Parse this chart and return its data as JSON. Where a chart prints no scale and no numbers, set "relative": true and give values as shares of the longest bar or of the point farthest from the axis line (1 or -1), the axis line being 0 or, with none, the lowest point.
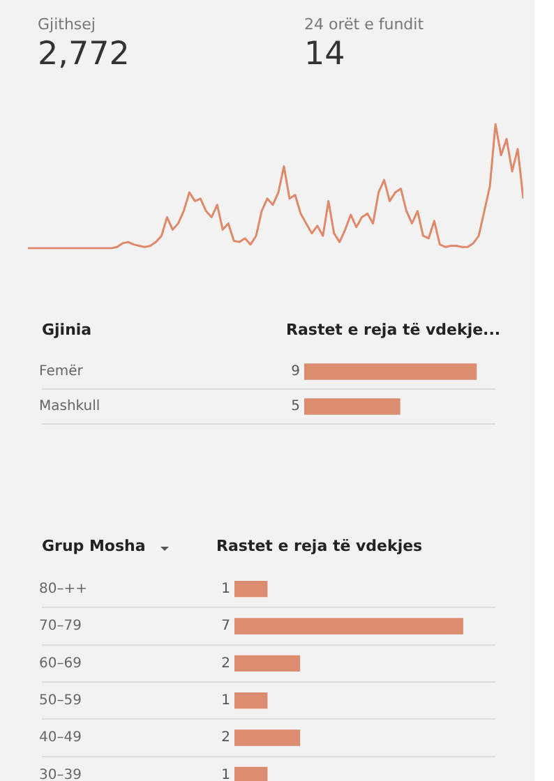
{
  "chart_data": [
    {
      "type": "other",
      "annotations": [
        "Gjithsej",
        "2,772",
        "24 orët e fundit",
        "14"
      ]
    },
    {
      "type": "line",
      "relative": true,
      "marker": "none",
      "legend": false,
      "color": "#e0896a",
      "categories": [
        null,
        null,
        null,
        null,
        null,
        null,
        null,
        null,
        null,
        null,
        null,
        null,
        null,
        null,
        null,
        null,
        null,
        null,
        null,
        null,
        null,
        null,
        null,
        null,
        null,
        null,
        null,
        null,
        null,
        null,
        null,
        null,
        null,
        null,
        null,
        null,
        null,
        null,
        null,
        null,
        null,
        null,
        null,
        null,
        null,
        null,
        null,
        null,
        null,
        null,
        null,
        null,
        null,
        null,
        null,
        null,
        null,
        null,
        null,
        null,
        null,
        null,
        null,
        null,
        null,
        null,
        null,
        null,
        null,
        null,
        null,
        null,
        null,
        null,
        null,
        null,
        null,
        null,
        null,
        null,
        null,
        null,
        null,
        null,
        null,
        null,
        null,
        null,
        null,
        null
      ],
      "values": [
        0,
        0,
        0,
        0,
        0,
        0,
        0,
        0,
        0,
        0,
        0,
        0,
        0,
        0,
        0,
        0,
        0.01,
        0.04,
        0.05,
        0.03,
        0.02,
        0.01,
        0.02,
        0.05,
        0.1,
        0.25,
        0.15,
        0.2,
        0.3,
        0.45,
        0.38,
        0.4,
        0.3,
        0.25,
        0.35,
        0.15,
        0.2,
        0.06,
        0.05,
        0.08,
        0.03,
        0.1,
        0.3,
        0.4,
        0.35,
        0.45,
        0.66,
        0.4,
        0.43,
        0.28,
        0.2,
        0.12,
        0.18,
        0.1,
        0.38,
        0.12,
        0.05,
        0.15,
        0.27,
        0.17,
        0.25,
        0.28,
        0.2,
        0.45,
        0.55,
        0.38,
        0.45,
        0.48,
        0.3,
        0.2,
        0.3,
        0.1,
        0.08,
        0.22,
        0.03,
        0.01,
        0.02,
        0.02,
        0.01,
        0.01,
        0.04,
        0.1,
        0.3,
        0.5,
        1,
        0.75,
        0.88,
        0.62,
        0.8,
        0.4
      ]
    },
    {
      "type": "bar",
      "orientation": "horizontal",
      "ylabel": "Gjinia",
      "xlabel": "Rastet e reja të vdekje...",
      "categories": [
        "Femër",
        "Mashkull"
      ],
      "values": [
        9,
        5
      ],
      "color": "#dd8d6f",
      "data_labels": true,
      "legend": false,
      "grid": "y",
      "tick_labels": "y"
    },
    {
      "type": "bar",
      "orientation": "horizontal",
      "ylabel": "Grup Mosha",
      "xlabel": "Rastet e reja të vdekjes",
      "categories": [
        "80–++",
        "70–79",
        "60–69",
        "50–59",
        "40–49",
        "30–39"
      ],
      "values": [
        1,
        7,
        2,
        1,
        2,
        1
      ],
      "color": "#dd8d6f",
      "data_labels": true,
      "legend": false,
      "grid": "y",
      "tick_labels": "y"
    }
  ]
}
